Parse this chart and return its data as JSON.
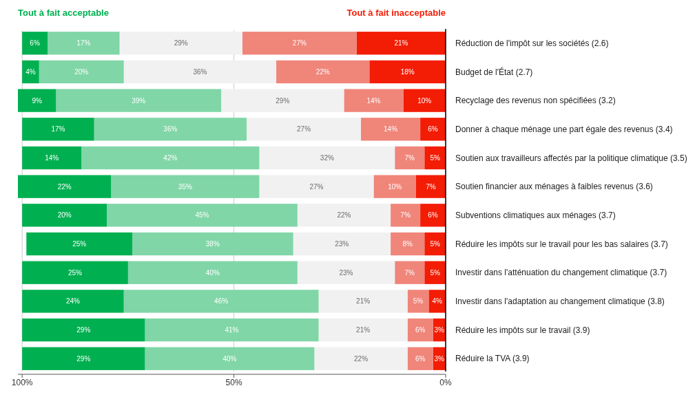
{
  "chart_data": {
    "type": "bar",
    "orientation": "horizontal",
    "stacked": true,
    "legend": "top",
    "grid": "x",
    "categories": [
      "Réduction de l'impôt sur les sociétés (2.6)",
      "Budget de l'État (2.7)",
      "Recyclage des revenus non spécifiées (3.2)",
      "Donner à chaque ménage une part égale des revenus (3.4)",
      "Soutien aux travailleurs affectés par la politique climatique (3.5)",
      "Soutien financier aux ménages à faibles revenus (3.6)",
      "Subventions climatiques aux ménages (3.7)",
      "Réduire les impôts sur le travail pour les bas salaires (3.7)",
      "Investir dans l'atténuation du changement climatique (3.7)",
      "Investir dans l'adaptation au changement climatique (3.8)",
      "Réduire les impôts sur le travail (3.9)",
      "Réduire la TVA (3.9)"
    ],
    "xlim": [
      101,
      0
    ],
    "xticks": [
      {
        "value": 100,
        "label": "100%"
      },
      {
        "value": 50,
        "label": "50%"
      },
      {
        "value": 0,
        "label": "0%"
      }
    ],
    "series": [
      {
        "name": "Tout à fait inacceptable",
        "color": "#f31c05",
        "values": [
          21,
          18,
          10,
          6,
          5,
          7,
          6,
          5,
          5,
          4,
          3,
          3
        ],
        "value_labels": [
          "21%",
          "18%",
          "10%",
          "6%",
          "5%",
          "7%",
          "6%",
          "5%",
          "5%",
          "4%",
          "3%",
          "3%"
        ]
      },
      {
        "color": "#f0857a",
        "values": [
          27,
          22,
          14,
          14,
          7,
          10,
          7,
          8,
          7,
          5,
          6,
          6
        ],
        "value_labels": [
          "27%",
          "22%",
          "14%",
          "14%",
          "7%",
          "10%",
          "7%",
          "8%",
          "7%",
          "5%",
          "6%",
          "6%"
        ]
      },
      {
        "color": "#f1f1f1",
        "values": [
          29,
          36,
          29,
          27,
          32,
          27,
          22,
          23,
          23,
          21,
          21,
          22
        ],
        "value_labels": [
          "29%",
          "36%",
          "29%",
          "27%",
          "32%",
          "27%",
          "22%",
          "23%",
          "23%",
          "21%",
          "21%",
          "22%"
        ]
      },
      {
        "color": "#80d6a7",
        "values": [
          17,
          20,
          39,
          36,
          42,
          35,
          45,
          38,
          40,
          46,
          41,
          40
        ],
        "value_labels": [
          "17%",
          "20%",
          "39%",
          "36%",
          "42%",
          "35%",
          "45%",
          "38%",
          "40%",
          "46%",
          "41%",
          "40%"
        ]
      },
      {
        "name": "Tout à fait acceptable",
        "color": "#00b050",
        "values": [
          6,
          4,
          9,
          17,
          14,
          22,
          20,
          25,
          25,
          24,
          29,
          29
        ],
        "value_labels": [
          "6%",
          "4%",
          "9%",
          "17%",
          "14%",
          "22%",
          "20%",
          "25%",
          "25%",
          "24%",
          "29%",
          "29%"
        ]
      }
    ]
  }
}
